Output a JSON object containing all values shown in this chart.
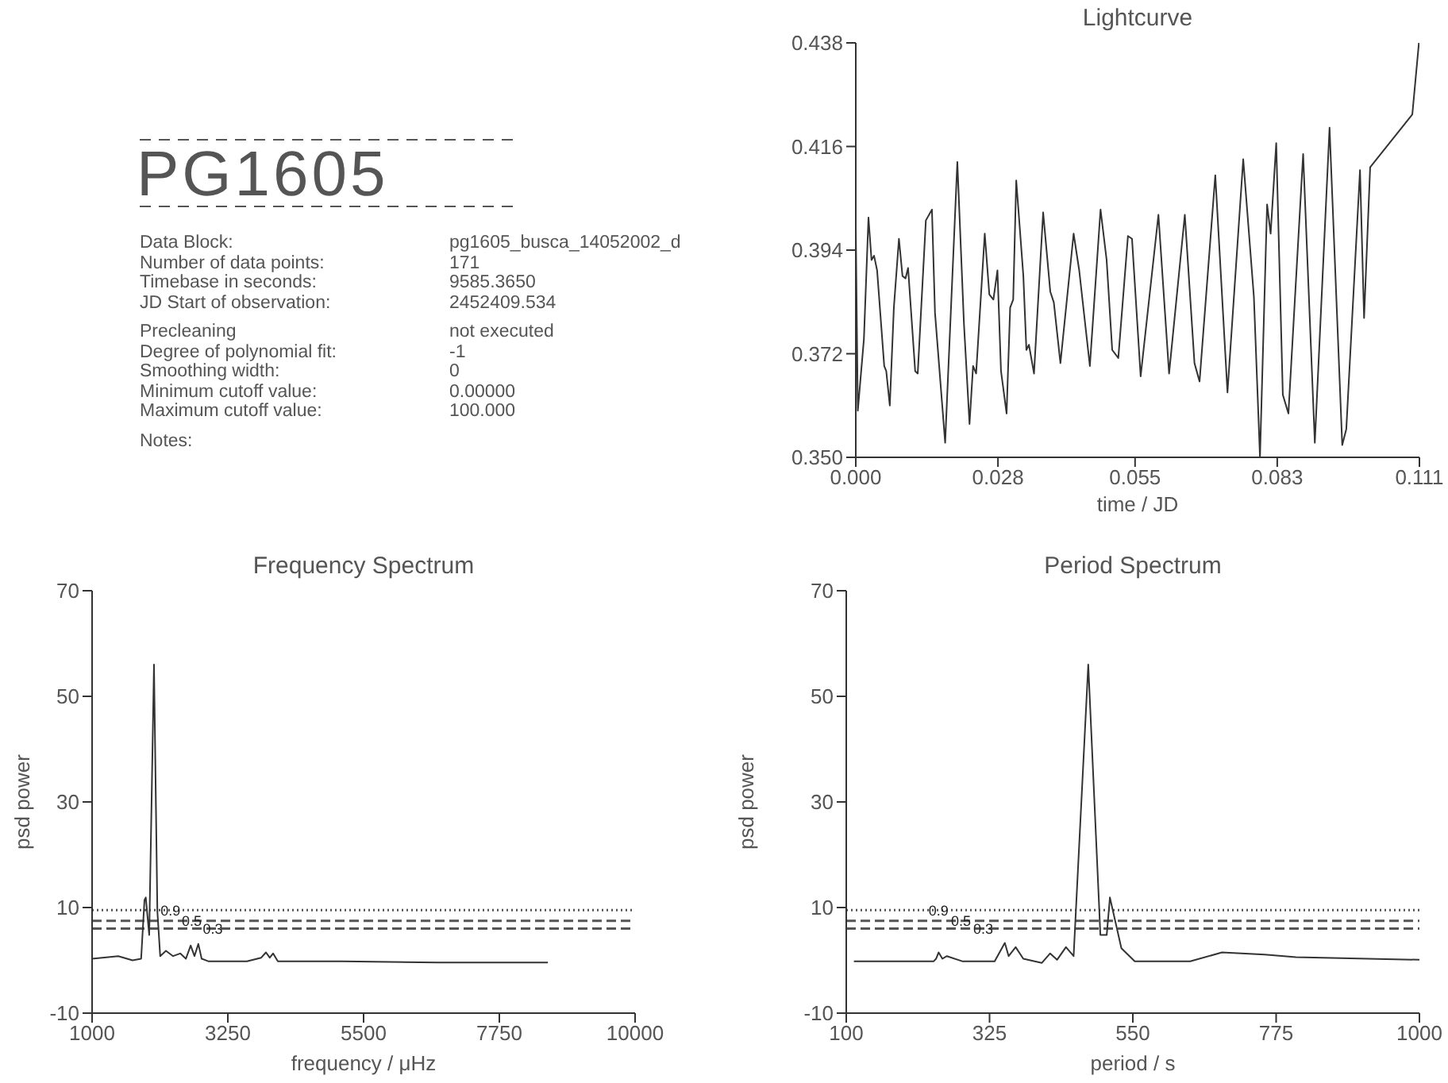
{
  "chart_data": [
    {
      "type": "other",
      "title": "PG1605",
      "annotations": [
        "Data Block:",
        "pg1605_busca_14052002_d",
        "Number of data points:",
        "171",
        "Timebase in seconds:",
        "9585.3650",
        "JD Start of observation:",
        "2452409.534",
        "Precleaning",
        "not executed",
        "Degree of polynomial fit:",
        "-1",
        "Smoothing width:",
        "0",
        "Minimum cutoff value:",
        "0.00000",
        "Maximum cutoff value:",
        "100.000",
        "Notes:"
      ]
    },
    {
      "type": "line",
      "title": "Lightcurve",
      "xlabel": "time / JD",
      "xlim": [
        0,
        0.111
      ],
      "ylim": [
        0.35,
        0.438
      ],
      "xticks": [
        {
          "value": 0,
          "label": "0.000"
        },
        {
          "value": 0.028,
          "label": "0.028"
        },
        {
          "value": 0.055,
          "label": "0.055"
        },
        {
          "value": 0.083,
          "label": "0.083"
        },
        {
          "value": 0.111,
          "label": "0.111"
        }
      ],
      "yticks": [
        {
          "value": 0.35,
          "label": "0.350"
        },
        {
          "value": 0.372,
          "label": "0.372"
        },
        {
          "value": 0.394,
          "label": "0.394"
        },
        {
          "value": 0.416,
          "label": "0.416"
        },
        {
          "value": 0.438,
          "label": "0.438"
        }
      ],
      "x": [
        0,
        0.0004,
        0.0016,
        0.0025,
        0.0031,
        0.0036,
        0.0042,
        0.0056,
        0.006,
        0.0067,
        0.0075,
        0.0085,
        0.0092,
        0.0098,
        0.0103,
        0.0117,
        0.0122,
        0.0138,
        0.015,
        0.0156,
        0.0176,
        0.02,
        0.0213,
        0.0224,
        0.0231,
        0.0237,
        0.0254,
        0.0263,
        0.0271,
        0.0279,
        0.0286,
        0.0297,
        0.0304,
        0.031,
        0.0316,
        0.033,
        0.0336,
        0.0341,
        0.0351,
        0.0369,
        0.0383,
        0.039,
        0.0403,
        0.0429,
        0.044,
        0.0461,
        0.0482,
        0.0494,
        0.0505,
        0.0517,
        0.0536,
        0.0544,
        0.0561,
        0.0596,
        0.0617,
        0.0648,
        0.0667,
        0.0677,
        0.0708,
        0.0732,
        0.0763,
        0.0784,
        0.0796,
        0.081,
        0.0817,
        0.0828,
        0.0841,
        0.0852,
        0.0881,
        0.0904,
        0.0933,
        0.0958,
        0.0966,
        0.0993,
        0.1001,
        0.1013,
        0.1096,
        0.1109
      ],
      "series": [
        {
          "color": "#333333",
          "values": [
            0.3987,
            0.3599,
            0.3751,
            0.4009,
            0.3919,
            0.3928,
            0.3897,
            0.3694,
            0.3683,
            0.361,
            0.3818,
            0.3964,
            0.3885,
            0.388,
            0.3902,
            0.3683,
            0.3678,
            0.4003,
            0.4026,
            0.3807,
            0.3531,
            0.4127,
            0.3784,
            0.3571,
            0.3694,
            0.3678,
            0.3975,
            0.3846,
            0.3835,
            0.3897,
            0.3683,
            0.3593,
            0.3818,
            0.3835,
            0.4088,
            0.3885,
            0.3728,
            0.3739,
            0.3678,
            0.402,
            0.3852,
            0.3829,
            0.37,
            0.3975,
            0.3897,
            0.3694,
            0.4026,
            0.3919,
            0.3728,
            0.3711,
            0.397,
            0.3964,
            0.3672,
            0.4015,
            0.3678,
            0.4015,
            0.37,
            0.3661,
            0.4099,
            0.3638,
            0.4133,
            0.3841,
            0.35,
            0.4037,
            0.3975,
            0.4167,
            0.3633,
            0.3593,
            0.4144,
            0.3531,
            0.42,
            0.3526,
            0.356,
            0.411,
            0.3796,
            0.4116,
            0.4228,
            0.438
          ]
        }
      ]
    },
    {
      "type": "line",
      "title": "Frequency Spectrum",
      "xlabel": "frequency / μHz",
      "ylabel": "psd power",
      "xlim": [
        1000,
        10000
      ],
      "ylim": [
        -10,
        70
      ],
      "xticks": [
        1000,
        3250,
        5500,
        7750,
        10000
      ],
      "yticks": [
        -10,
        10,
        30,
        50,
        70
      ],
      "x": [
        1000,
        1434,
        1671,
        1813,
        1868,
        1890,
        1947,
        2026,
        2082,
        2129,
        2224,
        2342,
        2461,
        2555,
        2634,
        2697,
        2761,
        2816,
        2934,
        3566,
        3803,
        3882,
        3945,
        4000,
        4079,
        5145,
        6724,
        8555
      ],
      "series": [
        {
          "color": "#333333",
          "values": [
            0.3,
            0.8,
            0,
            0.3,
            11.4,
            11.9,
            4.8,
            56,
            9.3,
            0.8,
            1.8,
            0.8,
            1.3,
            0.3,
            2.8,
            0.8,
            3.1,
            0.3,
            -0.2,
            -0.2,
            0.5,
            1.5,
            0.5,
            1.3,
            -0.2,
            -0.2,
            -0.4,
            -0.4
          ]
        }
      ],
      "ref_lines": [
        {
          "axis": "y",
          "value": 9.5,
          "line_style": "dotted",
          "color": "#555555"
        },
        {
          "axis": "y",
          "value": 7.5,
          "line_style": "dashed",
          "color": "#555555"
        },
        {
          "axis": "y",
          "value": 6,
          "line_style": "dashed",
          "color": "#555555"
        }
      ],
      "annotations": [
        {
          "text": "0.9",
          "x": 2300,
          "y": 9.5
        },
        {
          "text": "0.5",
          "x": 2650,
          "y": 7.5
        },
        {
          "text": "0.3",
          "x": 3000,
          "y": 6
        }
      ]
    },
    {
      "type": "line",
      "title": "Period Spectrum",
      "xlabel": "period / s",
      "ylabel": "psd power",
      "xlim": [
        100,
        1000
      ],
      "ylim": [
        -10,
        70
      ],
      "xticks": [
        100,
        325,
        550,
        775,
        1000
      ],
      "yticks": [
        -10,
        10,
        30,
        50,
        70
      ],
      "x": [
        112,
        237,
        241,
        245,
        251,
        258,
        283,
        333,
        349,
        355,
        366,
        378,
        407,
        420,
        431,
        445,
        457,
        480,
        497,
        499,
        509,
        514,
        532,
        553,
        640,
        690,
        757,
        806,
        1000
      ],
      "series": [
        {
          "color": "#333333",
          "values": [
            -0.2,
            -0.2,
            0.3,
            1.5,
            0.3,
            0.8,
            -0.2,
            -0.2,
            3.3,
            0.8,
            2.5,
            0.3,
            -0.5,
            1.3,
            0.1,
            2.5,
            0.8,
            56,
            10.4,
            4.8,
            4.8,
            11.9,
            2.3,
            -0.2,
            -0.2,
            1.5,
            1.1,
            0.6,
            0.1
          ]
        }
      ],
      "ref_lines": [
        {
          "axis": "y",
          "value": 9.5,
          "line_style": "dotted",
          "color": "#555555"
        },
        {
          "axis": "y",
          "value": 7.5,
          "line_style": "dashed",
          "color": "#555555"
        },
        {
          "axis": "y",
          "value": 6,
          "line_style": "dashed",
          "color": "#555555"
        }
      ],
      "annotations": [
        {
          "text": "0.9",
          "x": 245,
          "y": 9.5
        },
        {
          "text": "0.5",
          "x": 280,
          "y": 7.5
        },
        {
          "text": "0.3",
          "x": 315,
          "y": 6
        }
      ]
    }
  ]
}
